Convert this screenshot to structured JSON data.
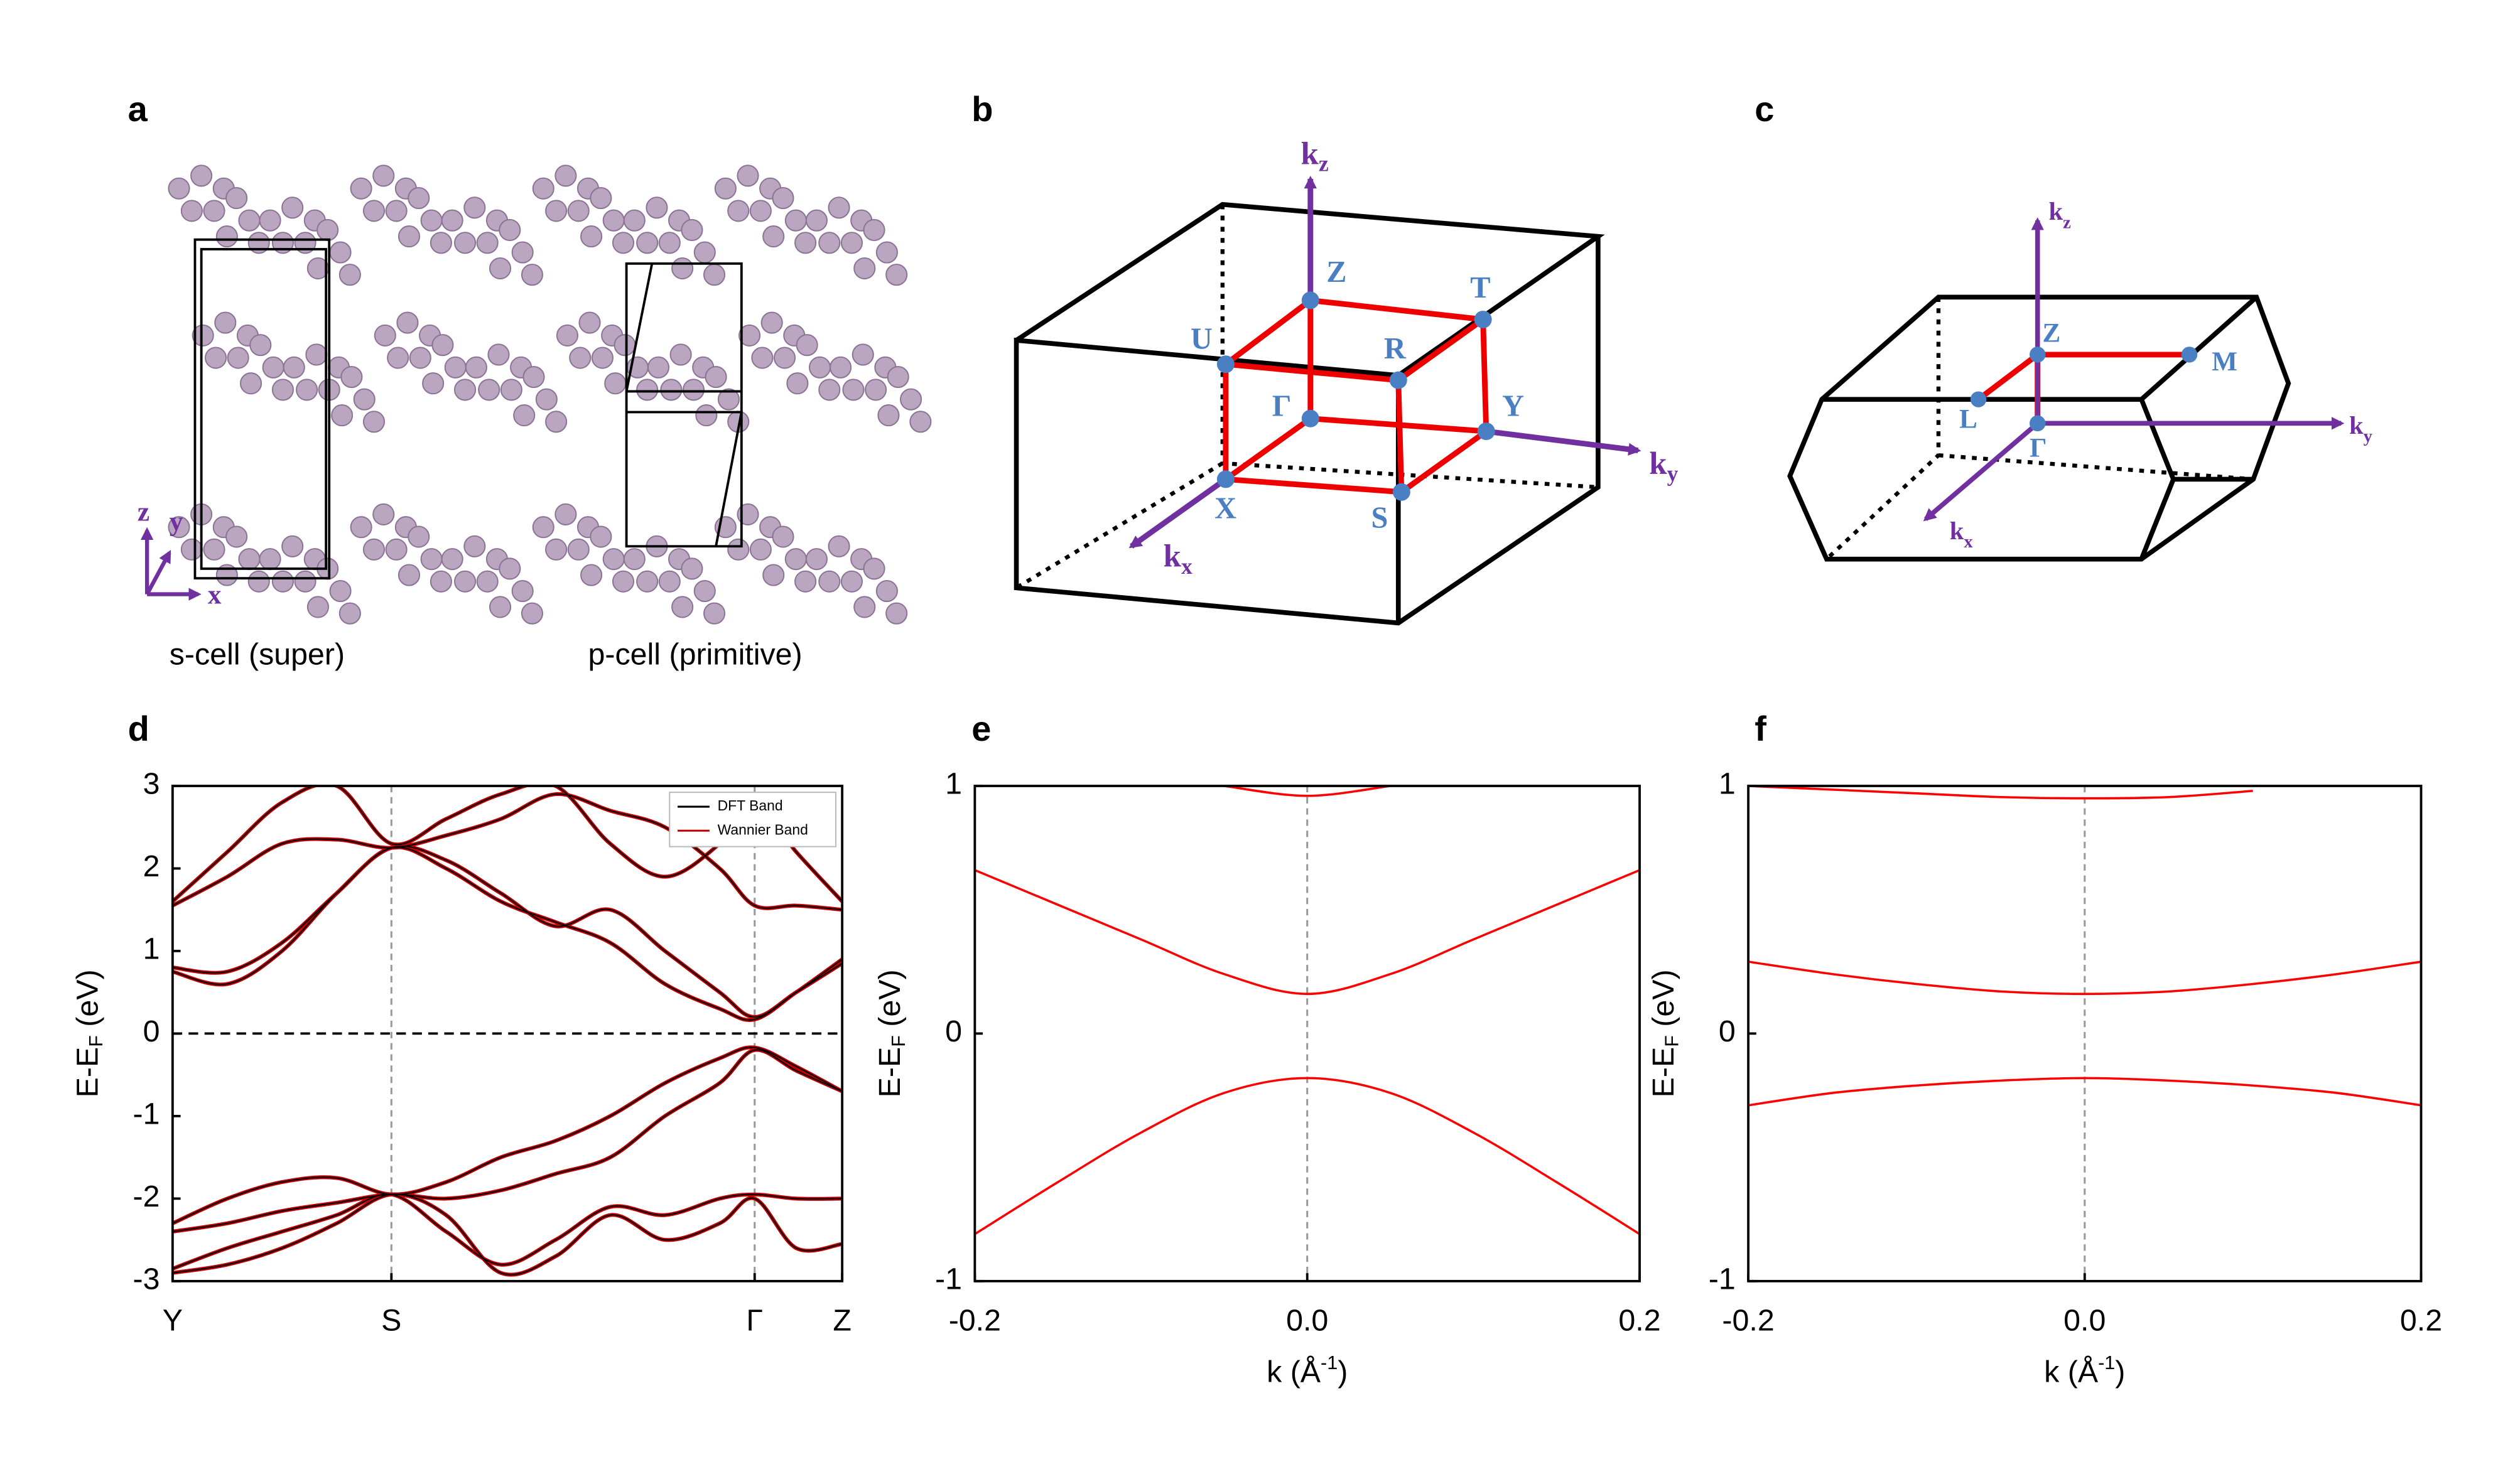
{
  "panel_labels": [
    "a",
    "b",
    "c",
    "d",
    "e",
    "f"
  ],
  "structure": {
    "axes": [
      "z",
      "y",
      "x"
    ],
    "captions": [
      "s-cell (super)",
      "p-cell (primitive)"
    ]
  },
  "bz_orthorhombic": {
    "points": [
      "Z",
      "T",
      "U",
      "R",
      "Γ",
      "Y",
      "X",
      "S"
    ],
    "axes": [
      {
        "base": "k",
        "sub": "z"
      },
      {
        "base": "k",
        "sub": "y"
      },
      {
        "base": "k",
        "sub": "x"
      }
    ]
  },
  "bz_hexagonal": {
    "points": [
      "Z",
      "M",
      "L",
      "Γ"
    ],
    "axes": [
      {
        "base": "k",
        "sub": "z"
      },
      {
        "base": "k",
        "sub": "y"
      },
      {
        "base": "k",
        "sub": "x"
      }
    ]
  },
  "chart_data": [
    {
      "type": "line",
      "ylabel": {
        "text": "E-E",
        "sub": "F",
        "unit": " (eV)"
      },
      "x": [
        0,
        0.25,
        0.5,
        0.75,
        1.0,
        1.25,
        1.5,
        1.75,
        2.0,
        2.25,
        2.5,
        2.66,
        2.85,
        3.06
      ],
      "xlim": [
        0,
        3.06
      ],
      "xticks": [
        {
          "value": 0,
          "label": "Y"
        },
        {
          "value": 1.0,
          "label": "S"
        },
        {
          "value": 2.66,
          "label": "Γ"
        },
        {
          "value": 3.06,
          "label": "Z"
        }
      ],
      "ylim": [
        -3,
        3
      ],
      "yticks": [
        3,
        2,
        1,
        0,
        -1,
        -2,
        -3
      ],
      "vlines": [
        1.0,
        2.66
      ],
      "hlines": [
        0
      ],
      "legend": "upper right",
      "series": [
        {
          "name": "DFT Band",
          "color": "#000000",
          "values": [
            [
              0.8,
              0.75,
              1.1,
              1.7,
              2.25,
              2.0,
              1.6,
              1.35,
              1.1,
              0.6,
              0.3,
              0.17,
              0.5,
              0.9
            ],
            [
              0.75,
              0.6,
              1.0,
              1.7,
              2.25,
              2.1,
              1.7,
              1.3,
              1.5,
              1.0,
              0.5,
              0.2,
              0.5,
              0.85
            ],
            [
              1.55,
              1.9,
              2.3,
              2.35,
              2.25,
              2.4,
              2.6,
              2.9,
              2.7,
              2.5,
              2.0,
              1.55,
              1.55,
              1.5
            ],
            [
              1.6,
              2.2,
              2.8,
              3.0,
              2.3,
              2.6,
              2.9,
              3.0,
              2.3,
              1.9,
              2.3,
              2.8,
              2.2,
              1.6
            ],
            [
              -2.3,
              -2.0,
              -1.8,
              -1.75,
              -1.95,
              -1.8,
              -1.5,
              -1.3,
              -1.0,
              -0.6,
              -0.3,
              -0.17,
              -0.4,
              -0.7
            ],
            [
              -2.4,
              -2.3,
              -2.15,
              -2.05,
              -1.95,
              -2.0,
              -1.9,
              -1.7,
              -1.5,
              -1.0,
              -0.6,
              -0.2,
              -0.45,
              -0.7
            ],
            [
              -2.85,
              -2.6,
              -2.4,
              -2.2,
              -1.95,
              -2.4,
              -2.8,
              -2.5,
              -2.1,
              -2.2,
              -2.0,
              -1.95,
              -2.0,
              -2.0
            ],
            [
              -2.9,
              -2.8,
              -2.6,
              -2.3,
              -1.95,
              -2.2,
              -2.9,
              -2.7,
              -2.2,
              -2.5,
              -2.3,
              -2.0,
              -2.6,
              -2.55
            ]
          ]
        },
        {
          "name": "Wannier Band",
          "color": "#c00000",
          "values": [
            [
              0.8,
              0.75,
              1.1,
              1.7,
              2.25,
              2.0,
              1.6,
              1.35,
              1.1,
              0.6,
              0.3,
              0.17,
              0.5,
              0.9
            ],
            [
              0.75,
              0.6,
              1.0,
              1.7,
              2.25,
              2.1,
              1.7,
              1.3,
              1.5,
              1.0,
              0.5,
              0.2,
              0.5,
              0.85
            ],
            [
              1.55,
              1.9,
              2.3,
              2.35,
              2.25,
              2.4,
              2.6,
              2.9,
              2.7,
              2.5,
              2.0,
              1.55,
              1.55,
              1.5
            ],
            [
              1.6,
              2.2,
              2.8,
              3.0,
              2.3,
              2.6,
              2.9,
              3.0,
              2.3,
              1.9,
              2.3,
              2.8,
              2.2,
              1.6
            ],
            [
              -2.3,
              -2.0,
              -1.8,
              -1.75,
              -1.95,
              -1.8,
              -1.5,
              -1.3,
              -1.0,
              -0.6,
              -0.3,
              -0.17,
              -0.4,
              -0.7
            ],
            [
              -2.4,
              -2.3,
              -2.15,
              -2.05,
              -1.95,
              -2.0,
              -1.9,
              -1.7,
              -1.5,
              -1.0,
              -0.6,
              -0.2,
              -0.45,
              -0.7
            ],
            [
              -2.85,
              -2.6,
              -2.4,
              -2.2,
              -1.95,
              -2.4,
              -2.8,
              -2.5,
              -2.1,
              -2.2,
              -2.0,
              -1.95,
              -2.0,
              -2.0
            ],
            [
              -2.9,
              -2.8,
              -2.6,
              -2.3,
              -1.95,
              -2.2,
              -2.9,
              -2.7,
              -2.2,
              -2.5,
              -2.3,
              -2.0,
              -2.6,
              -2.55
            ]
          ]
        }
      ]
    },
    {
      "type": "line",
      "ylabel": {
        "text": "E-E",
        "sub": "F",
        "unit": " (eV)"
      },
      "xlabel": {
        "text": "k (Å",
        "sup": "-1",
        "unit": ")"
      },
      "x": [
        -0.2,
        -0.15,
        -0.1,
        -0.05,
        0,
        0.05,
        0.1,
        0.15,
        0.2
      ],
      "xlim": [
        -0.2,
        0.2
      ],
      "xticks": [
        -0.2,
        {
          "value": 0,
          "label": "0.0"
        },
        0.2
      ],
      "ylim": [
        -1,
        1
      ],
      "yticks": [
        1,
        0,
        -1
      ],
      "vlines": [
        0
      ],
      "series": [
        {
          "color": "#ff0000",
          "values": [
            [
              null,
              null,
              null,
              1.0,
              0.96,
              1.0,
              null,
              null,
              null
            ],
            [
              0.66,
              0.52,
              0.38,
              0.24,
              0.16,
              0.24,
              0.38,
              0.52,
              0.66
            ],
            [
              -0.81,
              -0.6,
              -0.4,
              -0.24,
              -0.18,
              -0.24,
              -0.4,
              -0.6,
              -0.81
            ]
          ]
        }
      ]
    },
    {
      "type": "line",
      "ylabel": {
        "text": "E-E",
        "sub": "F",
        "unit": " (eV)"
      },
      "xlabel": {
        "text": "k (Å",
        "sup": "-1",
        "unit": ")"
      },
      "x": [
        -0.2,
        -0.15,
        -0.1,
        -0.05,
        0,
        0.05,
        0.1,
        0.15,
        0.2
      ],
      "xlim": [
        -0.2,
        0.2
      ],
      "xticks": [
        -0.2,
        {
          "value": 0,
          "label": "0.0"
        },
        0.2
      ],
      "ylim": [
        -1,
        1
      ],
      "yticks": [
        1,
        0,
        -1
      ],
      "vlines": [
        0
      ],
      "series": [
        {
          "color": "#ff0000",
          "values": [
            [
              1.0,
              0.985,
              0.97,
              0.955,
              0.95,
              0.955,
              0.98,
              null,
              null
            ],
            [
              0.29,
              0.24,
              0.2,
              0.17,
              0.16,
              0.17,
              0.2,
              0.24,
              0.29
            ],
            [
              -0.29,
              -0.24,
              -0.21,
              -0.19,
              -0.18,
              -0.19,
              -0.21,
              -0.24,
              -0.29
            ]
          ]
        }
      ]
    }
  ]
}
